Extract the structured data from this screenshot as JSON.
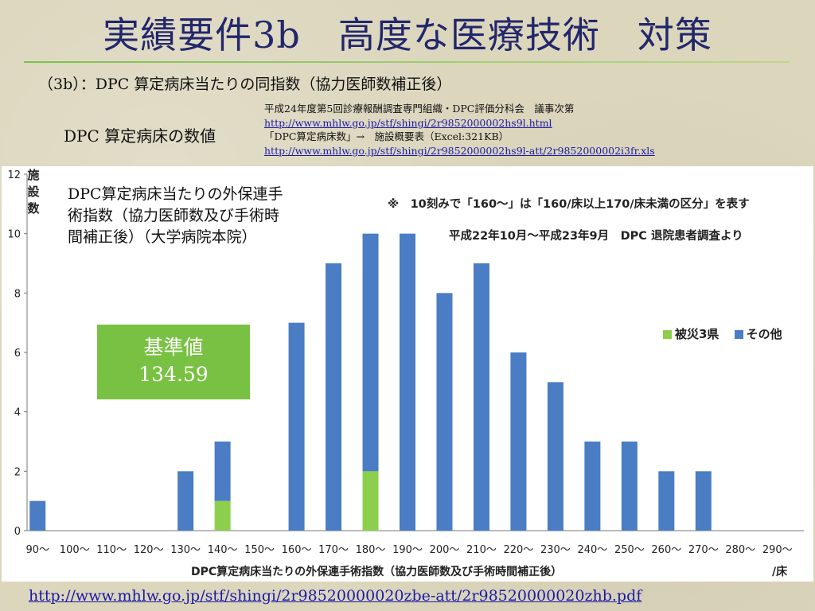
{
  "slide": {
    "title": "実績要件3b　高度な医療技術　対策",
    "subtitle": "（3b）：DPC 算定病床当たりの同指数（協力医師数補正後）",
    "dpc_label": "DPC 算定病床の数値",
    "source": {
      "line1": "平成24年度第5回診療報酬調査専門組織・DPC評価分科会　議事次第",
      "link1": "http://www.mhlw.go.jp/stf/shingi/2r9852000002hs9l.html",
      "line2": "「DPC算定病床数」→　施設概要表（Excel:321KB）",
      "link2": "http://www.mhlw.go.jp/stf/shingi/2r9852000002hs9l-att/2r9852000002i3fr.xls"
    },
    "footer_link": "http://www.mhlw.go.jp/stf/shingi/2r98520000020zbe-att/2r98520000020zhb.pdf"
  },
  "chart_data": {
    "type": "bar",
    "stacked": true,
    "title": "DPC算定病床当たりの外保連手術指数（協力医師数及び手術時間補正後）（大学病院本院）",
    "title_lines": [
      "DPC算定病床当たりの外保連手",
      "術指数（協力医師数及び手術時",
      "間補正後）（大学病院本院）"
    ],
    "notes": [
      "※　10刻みで「160～」は「160/床以上170/床未満の区分」を表す",
      "平成22年10月～平成23年9月　DPC 退院患者調査より"
    ],
    "ylabel": "施設数",
    "ylabel_chars": [
      "施",
      "設",
      "数"
    ],
    "xlabel": "DPC算定病床当たりの外保連手術指数（協力医師数及び手術時間補正後）",
    "xlabel_unit": "/床",
    "ylim": [
      0,
      12
    ],
    "yticks": [
      0,
      2,
      4,
      6,
      8,
      10,
      12
    ],
    "categories": [
      "90～",
      "100～",
      "110～",
      "120～",
      "130～",
      "140～",
      "150～",
      "160～",
      "170～",
      "180～",
      "190～",
      "200～",
      "210～",
      "220～",
      "230～",
      "240～",
      "250～",
      "260～",
      "270～",
      "280～",
      "290～"
    ],
    "series": [
      {
        "name": "被災3県",
        "color": "#8ccf4d",
        "values": [
          0,
          0,
          0,
          0,
          0,
          1,
          0,
          0,
          0,
          2,
          0,
          0,
          0,
          0,
          0,
          0,
          0,
          0,
          0,
          0,
          0
        ]
      },
      {
        "name": "その他",
        "color": "#4a7dc4",
        "values": [
          1,
          0,
          0,
          0,
          2,
          2,
          0,
          7,
          9,
          8,
          10,
          8,
          9,
          6,
          5,
          3,
          3,
          2,
          2,
          0,
          0
        ]
      }
    ],
    "reference": {
      "label": "基準値",
      "value": "134.59",
      "color": "#79c142"
    }
  }
}
